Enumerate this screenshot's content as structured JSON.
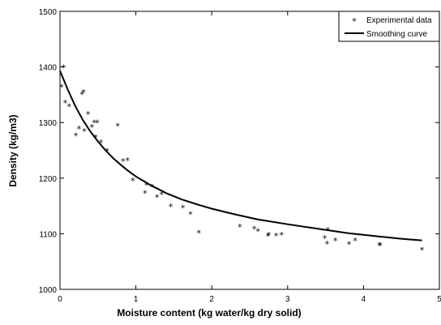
{
  "chart_data": {
    "type": "scatter",
    "title": "",
    "xlabel": "Moisture content (kg water/kg dry solid)",
    "ylabel": "Density (kg/m3)",
    "xlim": [
      0,
      5
    ],
    "ylim": [
      1000,
      1500
    ],
    "xticks": [
      0,
      1,
      2,
      3,
      4,
      5
    ],
    "yticks": [
      1000,
      1100,
      1200,
      1300,
      1400,
      1500
    ],
    "grid": false,
    "legend_position": "top-right",
    "series": [
      {
        "name": "Experimental data",
        "kind": "scatter",
        "marker": "*",
        "x": [
          0.02,
          0.05,
          0.07,
          0.12,
          0.21,
          0.25,
          0.29,
          0.31,
          0.32,
          0.37,
          0.42,
          0.45,
          0.47,
          0.49,
          0.54,
          0.62,
          0.76,
          0.83,
          0.89,
          0.96,
          1.12,
          1.14,
          1.21,
          1.28,
          1.34,
          1.46,
          1.62,
          1.72,
          1.83,
          2.37,
          2.56,
          2.61,
          2.74,
          2.75,
          2.85,
          2.92,
          3.49,
          3.52,
          3.53,
          3.63,
          3.81,
          3.89,
          4.21,
          4.22,
          4.77
        ],
        "y": [
          1365,
          1400,
          1337,
          1330,
          1278,
          1290,
          1352,
          1356,
          1286,
          1316,
          1293,
          1301,
          1275,
          1301,
          1265,
          1250,
          1295,
          1232,
          1233,
          1197,
          1174,
          1189,
          1186,
          1167,
          1172,
          1150,
          1148,
          1136,
          1103,
          1114,
          1110,
          1106,
          1097,
          1099,
          1098,
          1099,
          1093,
          1083,
          1108,
          1089,
          1082,
          1089,
          1080,
          1081,
          1072
        ]
      },
      {
        "name": "Smoothing curve",
        "kind": "line",
        "x": [
          0,
          0.1,
          0.2,
          0.3,
          0.4,
          0.5,
          0.6,
          0.7,
          0.8,
          0.9,
          1.0,
          1.2,
          1.4,
          1.6,
          1.8,
          2.0,
          2.3,
          2.6,
          3.0,
          3.4,
          3.8,
          4.2,
          4.5,
          4.77
        ],
        "y": [
          1393,
          1360,
          1330,
          1305,
          1284,
          1266,
          1250,
          1236,
          1224,
          1213,
          1203,
          1187,
          1173,
          1162,
          1153,
          1145,
          1135,
          1126,
          1117,
          1109,
          1101,
          1095,
          1091,
          1088
        ]
      }
    ]
  }
}
